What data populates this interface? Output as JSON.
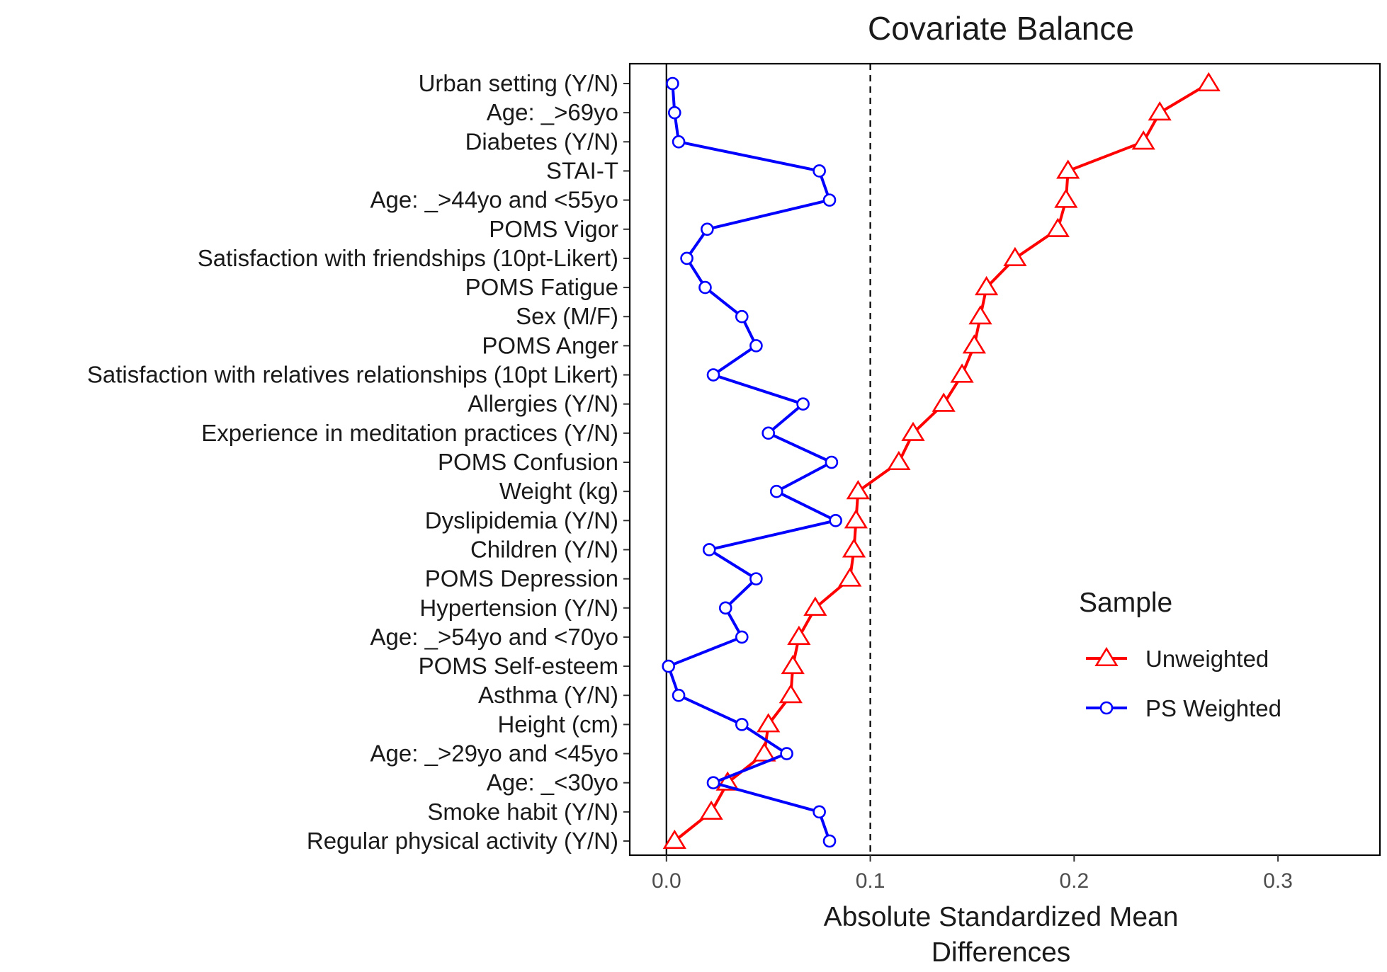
{
  "chart_data": {
    "type": "scatter",
    "title": "Covariate Balance",
    "xlabel_lines": [
      "Absolute Standardized Mean",
      "Differences"
    ],
    "xlim": [
      -0.018,
      0.35
    ],
    "xticks": [
      0.0,
      0.1,
      0.2,
      0.3
    ],
    "xtick_labels": [
      "0.0",
      "0.1",
      "0.2",
      "0.3"
    ],
    "threshold": 0.1,
    "reference_line": 0.0,
    "grid": false,
    "legend": {
      "title": "Sample",
      "position": "right"
    },
    "categories": [
      "Urban setting (Y/N)",
      "Age: _>69yo",
      "Diabetes (Y/N)",
      "STAI-T",
      "Age: _>44yo and <55yo",
      "POMS Vigor",
      "Satisfaction with friendships (10pt-Likert)",
      "POMS Fatigue",
      "Sex (M/F)",
      "POMS Anger",
      "Satisfaction with relatives relationships (10pt Likert)",
      "Allergies (Y/N)",
      "Experience in meditation practices (Y/N)",
      "POMS Confusion",
      "Weight (kg)",
      "Dyslipidemia (Y/N)",
      "Children (Y/N)",
      "POMS Depression",
      "Hypertension (Y/N)",
      "Age: _>54yo and <70yo",
      "POMS Self-esteem",
      "Asthma (Y/N)",
      "Height (cm)",
      "Age: _>29yo and <45yo",
      "Age: _<30yo",
      "Smoke habit (Y/N)",
      "Regular physical activity (Y/N)"
    ],
    "series": [
      {
        "name": "Unweighted",
        "color": "#ff0000",
        "marker": "triangle",
        "values": [
          0.266,
          0.242,
          0.234,
          0.197,
          0.196,
          0.192,
          0.171,
          0.157,
          0.154,
          0.151,
          0.145,
          0.136,
          0.121,
          0.114,
          0.094,
          0.093,
          0.092,
          0.09,
          0.073,
          0.065,
          0.062,
          0.061,
          0.05,
          0.048,
          0.03,
          0.022,
          0.004
        ]
      },
      {
        "name": "PS Weighted",
        "color": "#0000ff",
        "marker": "circle",
        "values": [
          0.003,
          0.004,
          0.006,
          0.075,
          0.08,
          0.02,
          0.01,
          0.019,
          0.037,
          0.044,
          0.023,
          0.067,
          0.05,
          0.081,
          0.054,
          0.083,
          0.021,
          0.044,
          0.029,
          0.037,
          0.001,
          0.006,
          0.037,
          0.059,
          0.023,
          0.075,
          0.08
        ]
      }
    ]
  }
}
